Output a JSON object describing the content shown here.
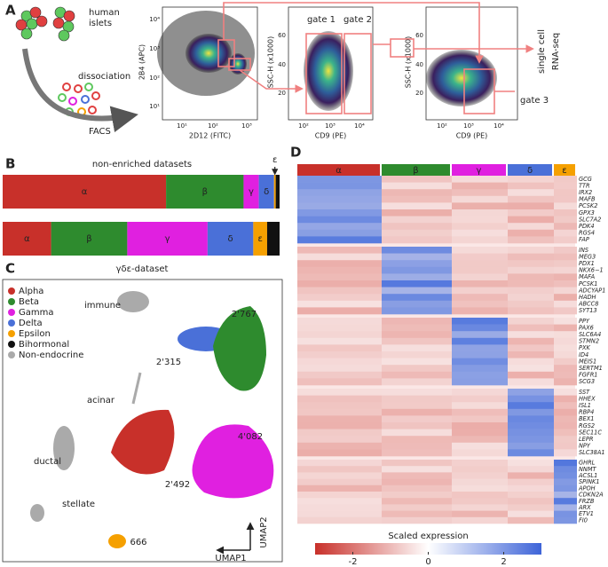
{
  "panel_a": {
    "label": "A",
    "islets_label": "human islets",
    "dissociation_label": "dissociation",
    "facs_label": "FACS",
    "plot1": {
      "ylabel": "2B4 (APC)",
      "xlabel": "2D12 (FITC)",
      "xticks": [
        "10¹",
        "10²",
        "10³"
      ],
      "yticks": [
        "10¹",
        "10²",
        "10³",
        "10⁴"
      ]
    },
    "plot2": {
      "ylabel": "SSC-H (x1000)",
      "xlabel": "CD9 (PE)",
      "xticks": [
        "10²",
        "10³",
        "10⁴"
      ],
      "yticks": [
        "20",
        "40",
        "60"
      ],
      "gates": [
        "gate 1",
        "gate 2"
      ]
    },
    "plot3": {
      "ylabel": "SSC-H (x1000)",
      "xlabel": "CD9 (PE)",
      "xticks": [
        "10²",
        "10³",
        "10⁴"
      ],
      "yticks": [
        "20",
        "40",
        "60"
      ],
      "gates": [
        "gate 3"
      ]
    },
    "output_label": [
      "single cell",
      "RNA-seq"
    ]
  },
  "panel_b": {
    "label": "B",
    "title": "non-enriched datasets",
    "bars": [
      {
        "segments": [
          {
            "label": "α",
            "fraction": 0.59,
            "color": "#c8302a"
          },
          {
            "label": "β",
            "fraction": 0.28,
            "color": "#2e8b2e"
          },
          {
            "label": "γ",
            "fraction": 0.055,
            "color": "#e020e0"
          },
          {
            "label": "δ",
            "fraction": 0.055,
            "color": "#4a70d8"
          },
          {
            "label": "ε",
            "fraction": 0.006,
            "color": "#f5a000"
          },
          {
            "fraction": 0.014,
            "color": "#111111"
          }
        ]
      },
      {
        "segments": [
          {
            "label": "α",
            "fraction": 0.175,
            "color": "#c8302a"
          },
          {
            "label": "β",
            "fraction": 0.275,
            "color": "#2e8b2e"
          },
          {
            "label": "γ",
            "fraction": 0.29,
            "color": "#e020e0"
          },
          {
            "label": "δ",
            "fraction": 0.165,
            "color": "#4a70d8"
          },
          {
            "label": "ε",
            "fraction": 0.05,
            "color": "#f5a000"
          },
          {
            "fraction": 0.045,
            "color": "#111111"
          }
        ]
      }
    ]
  },
  "panel_c": {
    "label": "C",
    "title": "γδε-dataset",
    "legend": [
      {
        "name": "Alpha",
        "color": "#c8302a"
      },
      {
        "name": "Beta",
        "color": "#2e8b2e"
      },
      {
        "name": "Gamma",
        "color": "#e020e0"
      },
      {
        "name": "Delta",
        "color": "#4a70d8"
      },
      {
        "name": "Epsilon",
        "color": "#f5a000"
      },
      {
        "name": "Bihormonal",
        "color": "#111111"
      },
      {
        "name": "Non-endocrine",
        "color": "#aaaaaa"
      }
    ],
    "counts": [
      {
        "text": "2'767",
        "color": "#2e8b2e"
      },
      {
        "text": "2'315",
        "color": "#4a70d8"
      },
      {
        "text": "2'492",
        "color": "#c8302a"
      },
      {
        "text": "4'082",
        "color": "#e020e0"
      },
      {
        "text": "666",
        "color": "#f5a000"
      }
    ],
    "tissues": [
      "immune",
      "acinar",
      "ductal",
      "stellate"
    ],
    "axis_labels": [
      "UMAP1",
      "UMAP2"
    ]
  },
  "panel_d": {
    "label": "D",
    "groups": [
      {
        "symbol": "α",
        "color": "#c8302a",
        "genes": [
          "GCG",
          "TTR",
          "IRX2",
          "MAFB",
          "PCSK2",
          "GPX3",
          "SLC7A2",
          "PDK4",
          "RGS4",
          "FAP"
        ]
      },
      {
        "symbol": "β",
        "color": "#2e8b2e",
        "genes": [
          "INS",
          "MEG3",
          "PDX1",
          "NKX6−1",
          "MAFA",
          "PCSK1",
          "ADCYAP1",
          "HADH",
          "ABCC8",
          "SYT13"
        ]
      },
      {
        "symbol": "γ",
        "color": "#e020e0",
        "genes": [
          "PPY",
          "PAX6",
          "SLC6A4",
          "STMN2",
          "PXK",
          "ID4",
          "MEIS1",
          "SERTM1",
          "FGFR1",
          "SCG3"
        ]
      },
      {
        "symbol": "δ",
        "color": "#4a70d8",
        "genes": [
          "SST",
          "HHEX",
          "ISL1",
          "RBP4",
          "BEX1",
          "RGS2",
          "SEC11C",
          "LEPR",
          "NPY",
          "SLC38A1"
        ]
      },
      {
        "symbol": "ε",
        "color": "#f5a000",
        "genes": [
          "GHRL",
          "NNMT",
          "ACSL1",
          "SPINK1",
          "APOH",
          "CDKN2A",
          "FRZB",
          "ARX",
          "ETV1",
          "FI0"
        ]
      }
    ],
    "colorbar": {
      "title": "Scaled expression",
      "lim": [
        -3,
        3
      ],
      "ticks": [
        -2,
        0,
        2
      ]
    }
  }
}
